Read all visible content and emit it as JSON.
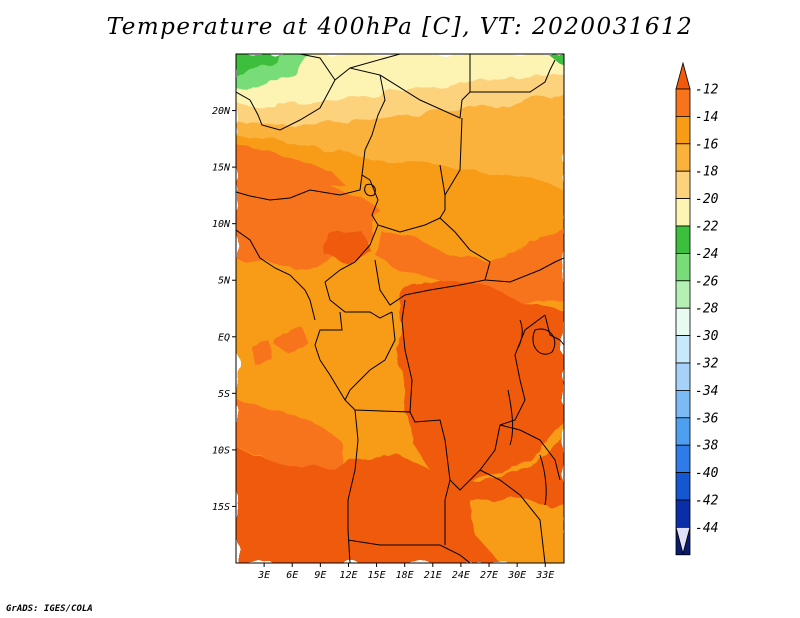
{
  "title": "Temperature at 400hPa [C], VT: 2020031612",
  "credit": "GrADS: IGES/COLA",
  "map": {
    "lon_range": [
      0,
      35
    ],
    "lat_range": [
      -20,
      25
    ],
    "lat_ticks": [
      "20N",
      "15N",
      "10N",
      "5N",
      "EQ",
      "5S",
      "10S",
      "15S"
    ],
    "lon_ticks": [
      "3E",
      "6E",
      "9E",
      "12E",
      "15E",
      "18E",
      "21E",
      "24E",
      "27E",
      "30E",
      "33E"
    ]
  },
  "colorbar": {
    "labels": [
      "-12",
      "-14",
      "-16",
      "-18",
      "-20",
      "-22",
      "-24",
      "-26",
      "-28",
      "-30",
      "-32",
      "-34",
      "-36",
      "-38",
      "-40",
      "-42",
      "-44"
    ],
    "colors": [
      "#f05a0a",
      "#f7731c",
      "#f89b15",
      "#fab23d",
      "#fdd27c",
      "#fdf4b4",
      "#3cbf3c",
      "#78dd78",
      "#b4f0b4",
      "#e8fbf0",
      "#c7e9fb",
      "#a6d2fa",
      "#7cbaf6",
      "#4e9ff0",
      "#2f7bea",
      "#1457d0",
      "#0a2ea8",
      "#0a1a70",
      "#e0e0f8"
    ]
  },
  "colors": {
    "deep_orange": "#f05a0a",
    "orange": "#f7731c",
    "amber": "#f89b15",
    "light_amber": "#fab23d",
    "pale_yellow": "#fdd27c",
    "cream": "#fdf4b4",
    "green": "#3cbf3c",
    "light_green": "#78dd78"
  }
}
